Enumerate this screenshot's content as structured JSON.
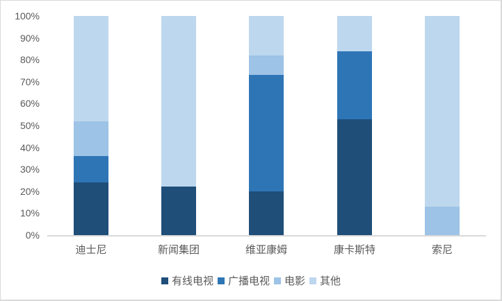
{
  "chart_data": {
    "type": "bar",
    "stacked": true,
    "percent": true,
    "title": "",
    "xlabel": "",
    "ylabel": "",
    "ylim": [
      0,
      100
    ],
    "yticks": [
      "0%",
      "10%",
      "20%",
      "30%",
      "40%",
      "50%",
      "60%",
      "70%",
      "80%",
      "90%",
      "100%"
    ],
    "categories": [
      "迪士尼",
      "新闻集团",
      "维亚康姆",
      "康卡斯特",
      "索尼"
    ],
    "series": [
      {
        "name": "有线电视",
        "color": "#1f4e79",
        "values": [
          24,
          22,
          20,
          53,
          0
        ]
      },
      {
        "name": "广播电视",
        "color": "#2e75b6",
        "values": [
          12,
          0,
          53,
          31,
          0
        ]
      },
      {
        "name": "电影",
        "color": "#9dc3e6",
        "values": [
          16,
          0,
          9,
          0,
          13
        ]
      },
      {
        "name": "其他",
        "color": "#bdd7ee",
        "values": [
          48,
          78,
          18,
          16,
          87
        ]
      }
    ],
    "legend_position": "bottom",
    "grid": false
  }
}
